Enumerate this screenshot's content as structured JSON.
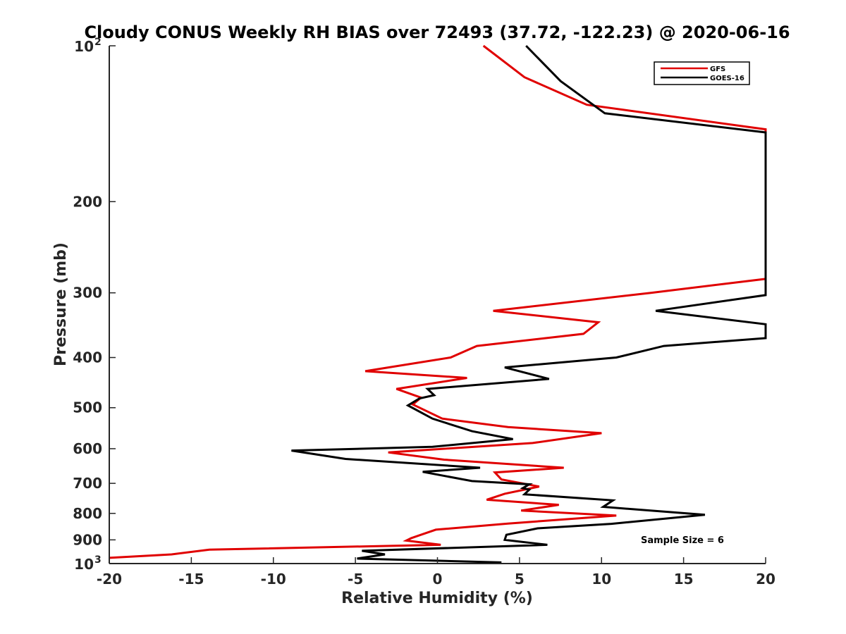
{
  "chart_data": {
    "type": "line",
    "title": "Cloudy CONUS Weekly RH BIAS over 72493 (37.72, -122.23) @ 2020-06-16",
    "xlabel": "Relative Humidity (%)",
    "ylabel": "Pressure (mb)",
    "xlim": [
      -20,
      20
    ],
    "ylim": [
      100,
      1000
    ],
    "y_scale": "log",
    "y_reversed": true,
    "grid": false,
    "legend_position": "top-right",
    "x_ticks": [
      "-20",
      "-15",
      "-10",
      "-5",
      "0",
      "5",
      "10",
      "15",
      "20"
    ],
    "y_ticks": [
      {
        "value": 100,
        "base": "10",
        "exp": "2"
      },
      {
        "value": 200,
        "label": "200"
      },
      {
        "value": 300,
        "label": "300"
      },
      {
        "value": 400,
        "label": "400"
      },
      {
        "value": 500,
        "label": "500"
      },
      {
        "value": 600,
        "label": "600"
      },
      {
        "value": 700,
        "label": "700"
      },
      {
        "value": 800,
        "label": "800"
      },
      {
        "value": 900,
        "label": "900"
      },
      {
        "value": 1000,
        "base": "10",
        "exp": "3"
      }
    ],
    "annotation": "Sample Size = 6",
    "series": [
      {
        "name": "GFS",
        "color": "#e00000",
        "points": [
          [
            2.8,
            100
          ],
          [
            5.3,
            115
          ],
          [
            9.1,
            130
          ],
          [
            20,
            145
          ],
          [
            20,
            282
          ],
          [
            13.0,
            300
          ],
          [
            3.4,
            325
          ],
          [
            9.8,
            342
          ],
          [
            8.9,
            360
          ],
          [
            2.4,
            380
          ],
          [
            0.8,
            400
          ],
          [
            -4.4,
            425
          ],
          [
            1.8,
            438
          ],
          [
            -2.5,
            460
          ],
          [
            -1.0,
            478
          ],
          [
            -1.5,
            493
          ],
          [
            0.3,
            525
          ],
          [
            4.3,
            545
          ],
          [
            10.0,
            560
          ],
          [
            5.8,
            585
          ],
          [
            -3.0,
            610
          ],
          [
            0.4,
            630
          ],
          [
            7.7,
            653
          ],
          [
            3.5,
            667
          ],
          [
            3.9,
            688
          ],
          [
            6.2,
            710
          ],
          [
            4.1,
            733
          ],
          [
            3.0,
            753
          ],
          [
            7.4,
            770
          ],
          [
            5.1,
            790
          ],
          [
            10.9,
            808
          ],
          [
            4.3,
            837
          ],
          [
            -0.1,
            860
          ],
          [
            -1.6,
            893
          ],
          [
            -1.9,
            903
          ],
          [
            0.2,
            920
          ],
          [
            -13.9,
            940
          ],
          [
            -16.2,
            960
          ],
          [
            -20,
            975
          ]
        ]
      },
      {
        "name": "GOES-16",
        "color": "#000000",
        "points": [
          [
            5.4,
            100
          ],
          [
            7.5,
            117
          ],
          [
            10.2,
            135
          ],
          [
            20,
            147
          ],
          [
            20,
            303
          ],
          [
            13.3,
            325
          ],
          [
            20,
            345
          ],
          [
            20,
            367
          ],
          [
            13.8,
            380
          ],
          [
            10.9,
            400
          ],
          [
            4.1,
            418
          ],
          [
            6.8,
            440
          ],
          [
            -0.6,
            460
          ],
          [
            -0.2,
            473
          ],
          [
            -1.1,
            480
          ],
          [
            -1.8,
            495
          ],
          [
            -0.3,
            525
          ],
          [
            2.1,
            555
          ],
          [
            4.6,
            575
          ],
          [
            -0.3,
            595
          ],
          [
            -8.9,
            605
          ],
          [
            -5.6,
            628
          ],
          [
            2.6,
            653
          ],
          [
            -0.9,
            665
          ],
          [
            2.1,
            693
          ],
          [
            5.6,
            703
          ],
          [
            5.2,
            715
          ],
          [
            5.6,
            720
          ],
          [
            5.3,
            735
          ],
          [
            10.7,
            755
          ],
          [
            10.1,
            777
          ],
          [
            16.3,
            805
          ],
          [
            10.6,
            838
          ],
          [
            6.1,
            855
          ],
          [
            4.2,
            880
          ],
          [
            4.1,
            900
          ],
          [
            6.7,
            920
          ],
          [
            -4.6,
            945
          ],
          [
            -3.2,
            960
          ],
          [
            -4.9,
            978
          ],
          [
            3.9,
            995
          ]
        ]
      }
    ]
  }
}
